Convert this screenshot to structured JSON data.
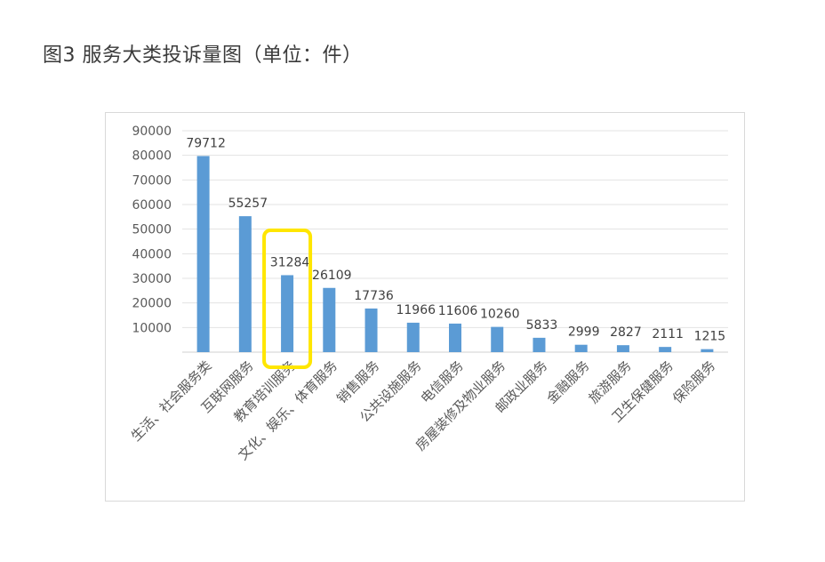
{
  "figure": {
    "title": "图3  服务大类投诉量图（单位：件）"
  },
  "chart_data": {
    "type": "bar",
    "categories": [
      "生活、社会服务类",
      "互联网服务",
      "教育培训服务",
      "文化、娱乐、体育服务",
      "销售服务",
      "公共设施服务",
      "电信服务",
      "房屋装修及物业服务",
      "邮政业服务",
      "金融服务",
      "旅游服务",
      "卫生保健服务",
      "保险服务"
    ],
    "values": [
      79712,
      55257,
      31284,
      26109,
      17736,
      11966,
      11606,
      10260,
      5833,
      2999,
      2827,
      2111,
      1215
    ],
    "data_labels": [
      "79712",
      "55257",
      "31284",
      "26109",
      "17736",
      "11966",
      "11606",
      "10260",
      "5833",
      "2999",
      "2827",
      "2111",
      "1215"
    ],
    "y_ticks": [
      "10000",
      "20000",
      "30000",
      "40000",
      "50000",
      "60000",
      "70000",
      "80000",
      "90000"
    ],
    "ylim": [
      0,
      90000
    ],
    "grid": true,
    "legend": "none",
    "bar_color": "#5b9bd5",
    "highlight": {
      "category": "教育培训服务",
      "color": "#ffe600"
    }
  }
}
